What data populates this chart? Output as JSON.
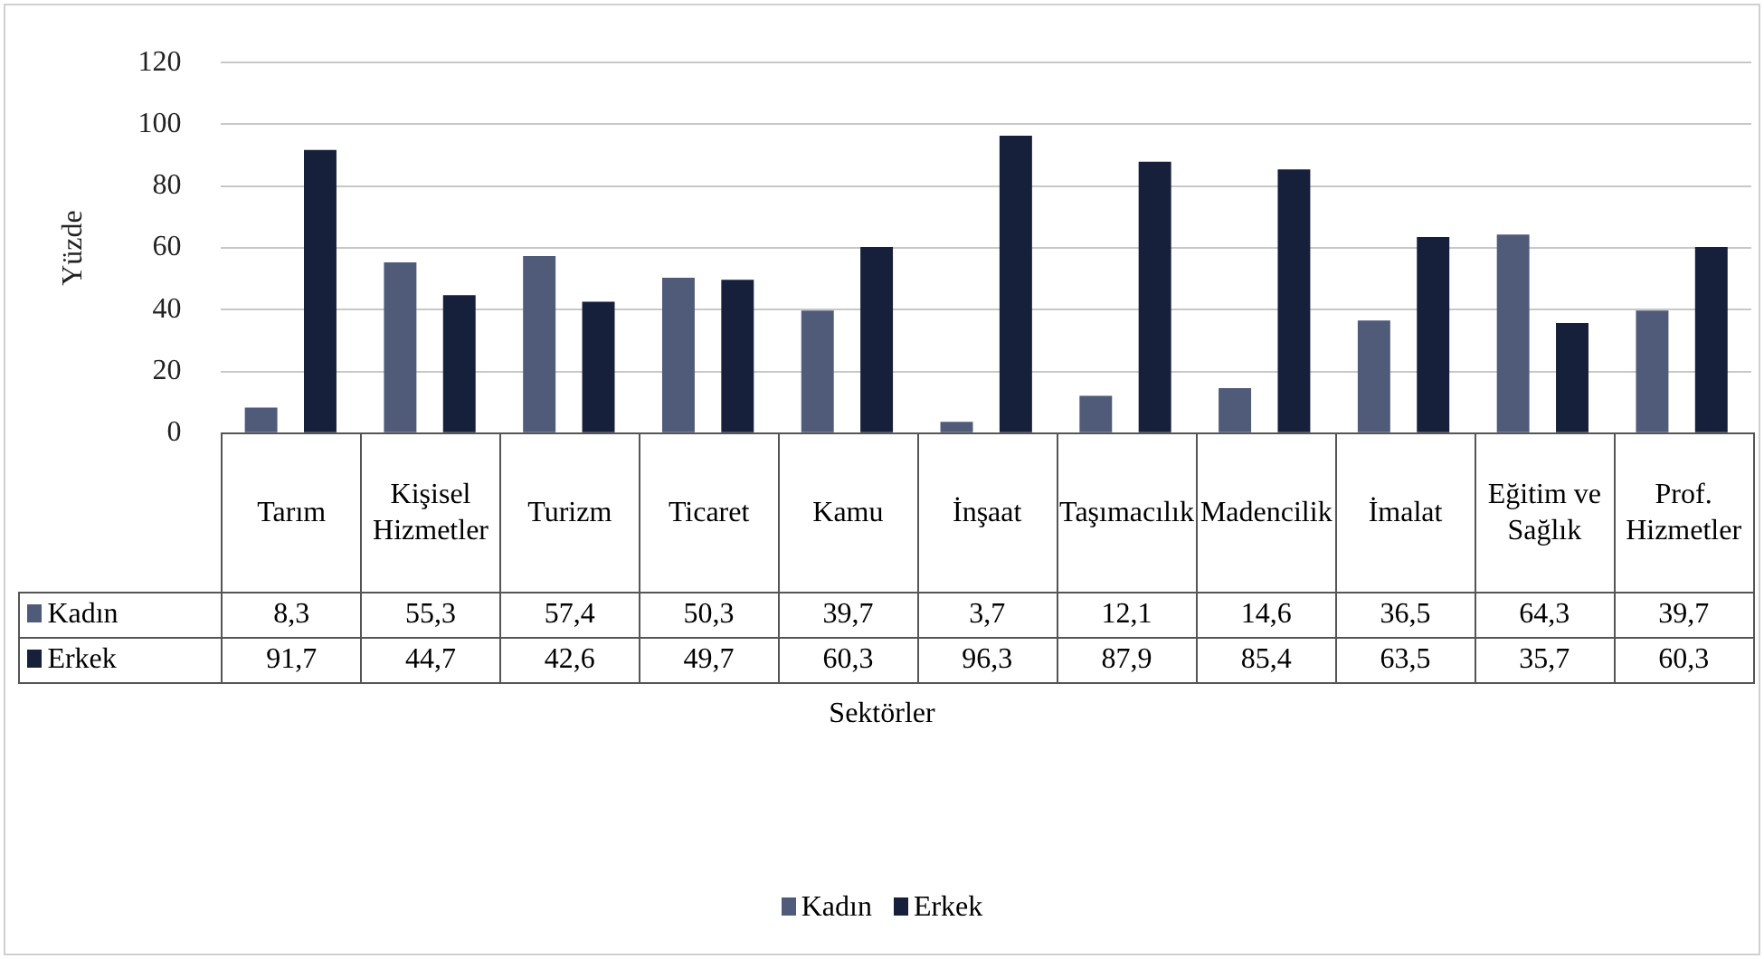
{
  "chart_data": {
    "type": "bar",
    "ylabel": "Yüzde",
    "categories": [
      "Tarım",
      "Kişisel Hizmetler",
      "Turizm",
      "Ticaret",
      "Kamu",
      "İnşaat",
      "Taşımacılık",
      "Madencilik",
      "İmalat",
      "Eğitim ve Sağlık",
      "Prof. Hizmetler"
    ],
    "series": [
      {
        "name": "Kadın",
        "color": "#4f5b78",
        "values": [
          8.3,
          55.3,
          57.4,
          50.3,
          39.7,
          3.7,
          12.1,
          14.6,
          36.5,
          64.3,
          39.7
        ],
        "value_labels": [
          "8,3",
          "55,3",
          "57,4",
          "50,3",
          "39,7",
          "3,7",
          "12,1",
          "14,6",
          "36,5",
          "64,3",
          "39,7"
        ]
      },
      {
        "name": "Erkek",
        "color": "#16203a",
        "values": [
          91.7,
          44.7,
          42.6,
          49.7,
          60.3,
          96.3,
          87.9,
          85.4,
          63.5,
          35.7,
          60.3
        ],
        "value_labels": [
          "91,7",
          "44,7",
          "42,6",
          "49,7",
          "60,3",
          "96,3",
          "87,9",
          "85,4",
          "63,5",
          "35,7",
          "60,3"
        ]
      }
    ],
    "annotations": [
      "Sektörler"
    ],
    "ylim": [
      0,
      120
    ],
    "yticks": [
      0,
      20,
      40,
      60,
      80,
      100,
      120
    ],
    "grid": "y",
    "legend": "bottom"
  }
}
